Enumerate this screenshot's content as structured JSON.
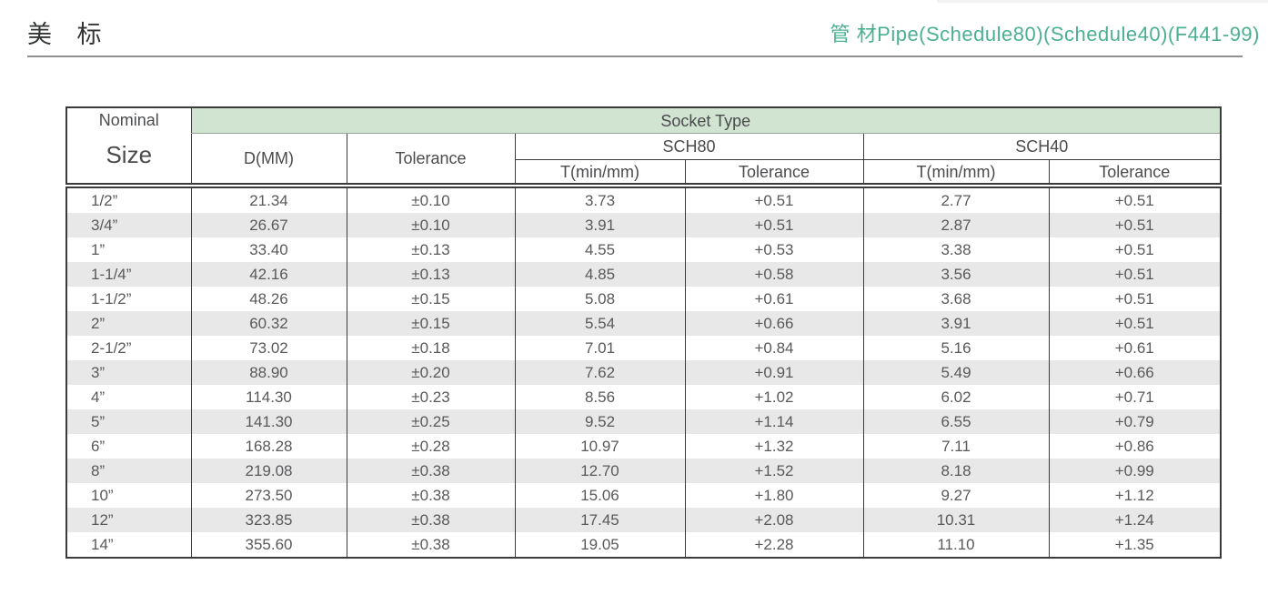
{
  "page": {
    "title": "美 标",
    "subtitle": "管 材Pipe(Schedule80)(Schedule40)(F441-99)"
  },
  "colors": {
    "subtitle_green": "#4bb091",
    "socket_band_green": "#d1e3d1",
    "row_stripe_gray": "#e8e8e8"
  },
  "table": {
    "header": {
      "nominal": "Nominal",
      "size": "Size",
      "socket_type": "Socket Type",
      "d_mm": "D(MM)",
      "tolerance": "Tolerance",
      "sch80": "SCH80",
      "sch40": "SCH40",
      "sch80_t_min": "T(min/mm)",
      "sch80_tolerance": "Tolerance",
      "sch40_t_min": "T(min/mm)",
      "sch40_tolerance": "Tolerance"
    },
    "rows": [
      [
        "1/2”",
        "21.34",
        "±0.10",
        "3.73",
        "+0.51",
        "2.77",
        "+0.51"
      ],
      [
        "3/4”",
        "26.67",
        "±0.10",
        "3.91",
        "+0.51",
        "2.87",
        "+0.51"
      ],
      [
        "1”",
        "33.40",
        "±0.13",
        "4.55",
        "+0.53",
        "3.38",
        "+0.51"
      ],
      [
        "1-1/4”",
        "42.16",
        "±0.13",
        "4.85",
        "+0.58",
        "3.56",
        "+0.51"
      ],
      [
        "1-1/2”",
        "48.26",
        "±0.15",
        "5.08",
        "+0.61",
        "3.68",
        "+0.51"
      ],
      [
        "2”",
        "60.32",
        "±0.15",
        "5.54",
        "+0.66",
        "3.91",
        "+0.51"
      ],
      [
        "2-1/2”",
        "73.02",
        "±0.18",
        "7.01",
        "+0.84",
        "5.16",
        "+0.61"
      ],
      [
        "3”",
        "88.90",
        "±0.20",
        "7.62",
        "+0.91",
        "5.49",
        "+0.66"
      ],
      [
        "4”",
        "114.30",
        "±0.23",
        "8.56",
        "+1.02",
        "6.02",
        "+0.71"
      ],
      [
        "5”",
        "141.30",
        "±0.25",
        "9.52",
        "+1.14",
        "6.55",
        "+0.79"
      ],
      [
        "6”",
        "168.28",
        "±0.28",
        "10.97",
        "+1.32",
        "7.11",
        "+0.86"
      ],
      [
        "8”",
        "219.08",
        "±0.38",
        "12.70",
        "+1.52",
        "8.18",
        "+0.99"
      ],
      [
        "10”",
        "273.50",
        "±0.38",
        "15.06",
        "+1.80",
        "9.27",
        "+1.12"
      ],
      [
        "12”",
        "323.85",
        "±0.38",
        "17.45",
        "+2.08",
        "10.31",
        "+1.24"
      ],
      [
        "14”",
        "355.60",
        "±0.38",
        "19.05",
        "+2.28",
        "11.10",
        "+1.35"
      ]
    ]
  }
}
